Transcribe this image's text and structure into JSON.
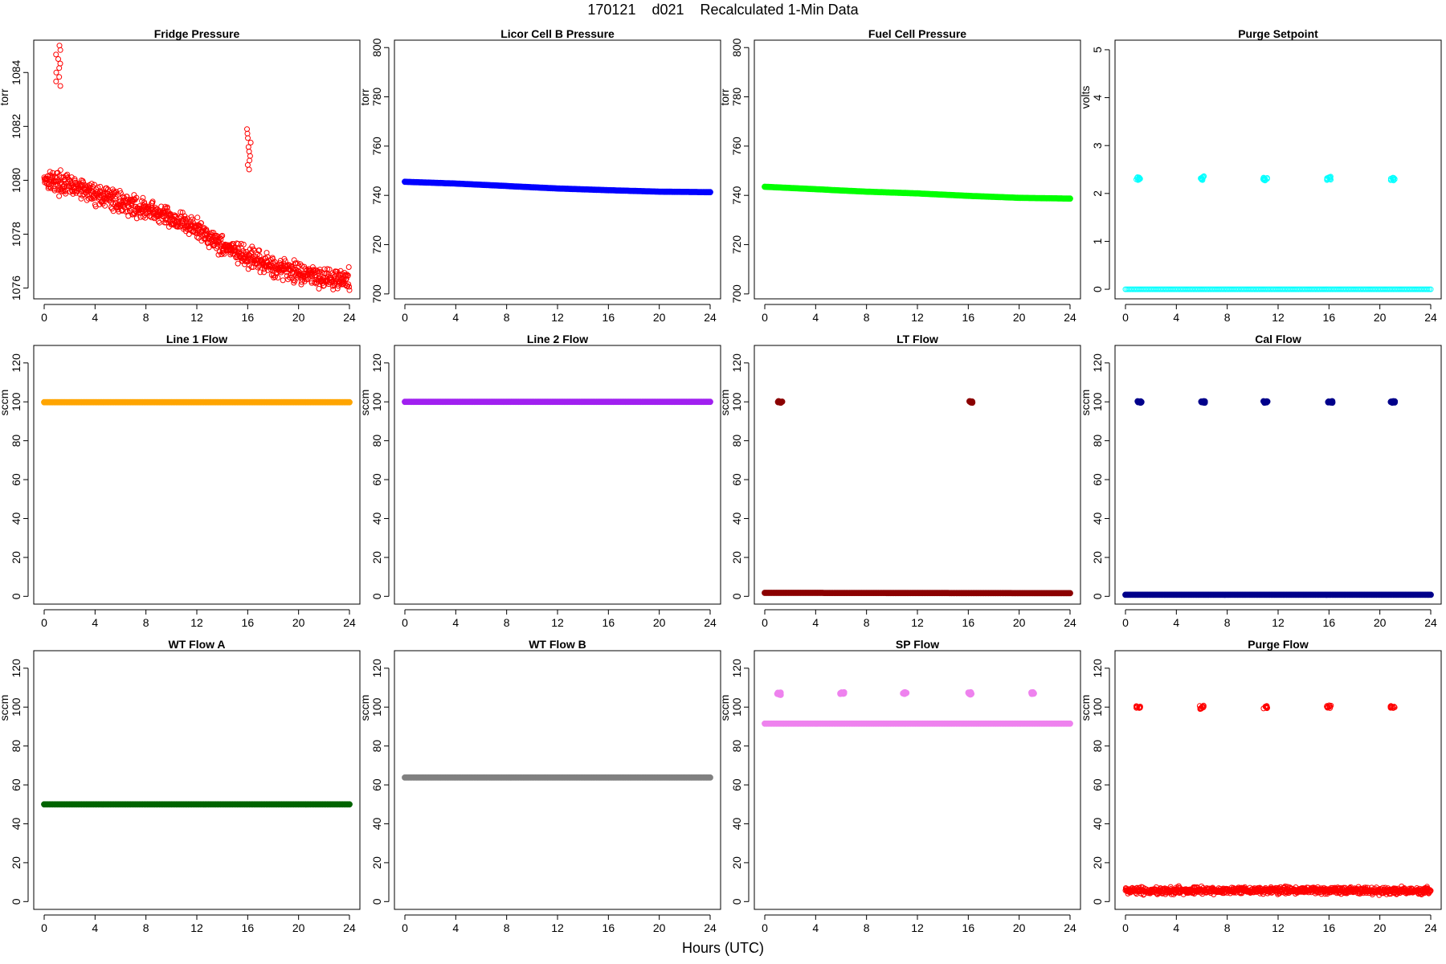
{
  "figure": {
    "title": "170121    d021    Recalculated 1-Min Data",
    "xlabel": "Hours (UTC)"
  },
  "chart_data": [
    {
      "type": "scatter",
      "title": "Fridge Pressure",
      "ylabel": "torr",
      "color": "#ff0000",
      "marker": "open",
      "xlim": [
        0,
        24
      ],
      "ylim": [
        1075.6,
        1085.2
      ],
      "xticks": [
        0,
        4,
        8,
        12,
        16,
        20,
        24
      ],
      "yticks": [
        1076,
        1078,
        1080,
        1082,
        1084
      ],
      "grid": false,
      "series": [
        {
          "kind": "noisy",
          "points": [
            [
              0,
              1080.1
            ],
            [
              2,
              1079.8
            ],
            [
              4,
              1079.5
            ],
            [
              6,
              1079.2
            ],
            [
              8,
              1078.9
            ],
            [
              10,
              1078.6
            ],
            [
              12,
              1078.2
            ],
            [
              14,
              1077.6
            ],
            [
              16,
              1077.1
            ],
            [
              18,
              1076.8
            ],
            [
              20,
              1076.6
            ],
            [
              22,
              1076.4
            ],
            [
              24,
              1076.3
            ]
          ],
          "spread": 0.35
        },
        {
          "kind": "cluster",
          "x": 1.1,
          "y_min": 1083.5,
          "y_max": 1085.0
        },
        {
          "kind": "cluster",
          "x": 16.1,
          "y_min": 1080.4,
          "y_max": 1081.9
        }
      ]
    },
    {
      "type": "scatter",
      "title": "Licor Cell B Pressure",
      "ylabel": "torr",
      "color": "#0000ff",
      "marker": "filled",
      "xlim": [
        0,
        24
      ],
      "ylim": [
        698,
        803
      ],
      "xticks": [
        0,
        4,
        8,
        12,
        16,
        20,
        24
      ],
      "yticks": [
        700,
        720,
        740,
        760,
        780,
        800
      ],
      "grid": false,
      "series": [
        {
          "kind": "line",
          "points": [
            [
              0,
              745.5
            ],
            [
              4,
              744.8
            ],
            [
              8,
              743.8
            ],
            [
              12,
              742.8
            ],
            [
              16,
              742.1
            ],
            [
              20,
              741.5
            ],
            [
              24,
              741.3
            ]
          ]
        }
      ]
    },
    {
      "type": "scatter",
      "title": "Fuel Cell Pressure",
      "ylabel": "torr",
      "color": "#00ff00",
      "marker": "filled",
      "xlim": [
        0,
        24
      ],
      "ylim": [
        698,
        803
      ],
      "xticks": [
        0,
        4,
        8,
        12,
        16,
        20,
        24
      ],
      "yticks": [
        700,
        720,
        740,
        760,
        780,
        800
      ],
      "grid": false,
      "series": [
        {
          "kind": "line",
          "points": [
            [
              0,
              743.5
            ],
            [
              4,
              742.5
            ],
            [
              8,
              741.5
            ],
            [
              12,
              740.8
            ],
            [
              16,
              739.8
            ],
            [
              20,
              739.0
            ],
            [
              24,
              738.7
            ]
          ]
        }
      ]
    },
    {
      "type": "scatter",
      "title": "Purge Setpoint",
      "ylabel": "volts",
      "color": "#00ffff",
      "marker": "open",
      "xlim": [
        0,
        24
      ],
      "ylim": [
        -0.2,
        5.2
      ],
      "xticks": [
        0,
        4,
        8,
        12,
        16,
        20,
        24
      ],
      "yticks": [
        0,
        1,
        2,
        3,
        4,
        5
      ],
      "grid": false,
      "series": [
        {
          "kind": "line",
          "points": [
            [
              0,
              0
            ],
            [
              24,
              0
            ]
          ]
        },
        {
          "kind": "cluster",
          "x": 1.0,
          "y_min": 2.28,
          "y_max": 2.34
        },
        {
          "kind": "cluster",
          "x": 6.0,
          "y_min": 2.28,
          "y_max": 2.36
        },
        {
          "kind": "cluster",
          "x": 11.0,
          "y_min": 2.27,
          "y_max": 2.33
        },
        {
          "kind": "cluster",
          "x": 16.0,
          "y_min": 2.28,
          "y_max": 2.35
        },
        {
          "kind": "cluster",
          "x": 21.0,
          "y_min": 2.27,
          "y_max": 2.33
        }
      ]
    },
    {
      "type": "scatter",
      "title": "Line 1 Flow",
      "ylabel": "sccm",
      "color": "#ffa500",
      "marker": "filled",
      "xlim": [
        0,
        24
      ],
      "ylim": [
        -4,
        129
      ],
      "xticks": [
        0,
        4,
        8,
        12,
        16,
        20,
        24
      ],
      "yticks": [
        0,
        20,
        40,
        60,
        80,
        100,
        120
      ],
      "grid": false,
      "series": [
        {
          "kind": "line",
          "points": [
            [
              0,
              99.8
            ],
            [
              24,
              99.8
            ]
          ]
        }
      ]
    },
    {
      "type": "scatter",
      "title": "Line 2 Flow",
      "ylabel": "sccm",
      "color": "#a020f0",
      "marker": "filled",
      "xlim": [
        0,
        24
      ],
      "ylim": [
        -4,
        129
      ],
      "xticks": [
        0,
        4,
        8,
        12,
        16,
        20,
        24
      ],
      "yticks": [
        0,
        20,
        40,
        60,
        80,
        100,
        120
      ],
      "grid": false,
      "series": [
        {
          "kind": "line",
          "points": [
            [
              0,
              100.0
            ],
            [
              24,
              100.0
            ]
          ]
        }
      ]
    },
    {
      "type": "scatter",
      "title": "LT Flow",
      "ylabel": "sccm",
      "color": "#8b0000",
      "marker": "filled",
      "xlim": [
        0,
        24
      ],
      "ylim": [
        -4,
        129
      ],
      "xticks": [
        0,
        4,
        8,
        12,
        16,
        20,
        24
      ],
      "yticks": [
        0,
        20,
        40,
        60,
        80,
        100,
        120
      ],
      "grid": false,
      "series": [
        {
          "kind": "line",
          "points": [
            [
              0,
              1.8
            ],
            [
              24,
              1.6
            ]
          ]
        },
        {
          "kind": "cluster",
          "x": 1.2,
          "y_min": 99.6,
          "y_max": 100.3
        },
        {
          "kind": "cluster",
          "x": 16.2,
          "y_min": 99.6,
          "y_max": 100.3
        }
      ]
    },
    {
      "type": "scatter",
      "title": "Cal Flow",
      "ylabel": "sccm",
      "color": "#00008b",
      "marker": "filled",
      "xlim": [
        0,
        24
      ],
      "ylim": [
        -4,
        129
      ],
      "xticks": [
        0,
        4,
        8,
        12,
        16,
        20,
        24
      ],
      "yticks": [
        0,
        20,
        40,
        60,
        80,
        100,
        120
      ],
      "grid": false,
      "series": [
        {
          "kind": "line",
          "points": [
            [
              0,
              0.8
            ],
            [
              24,
              0.8
            ]
          ]
        },
        {
          "kind": "cluster",
          "x": 1.1,
          "y_min": 99.6,
          "y_max": 100.3
        },
        {
          "kind": "cluster",
          "x": 6.1,
          "y_min": 99.6,
          "y_max": 100.3
        },
        {
          "kind": "cluster",
          "x": 11.0,
          "y_min": 99.6,
          "y_max": 100.3
        },
        {
          "kind": "cluster",
          "x": 16.1,
          "y_min": 99.6,
          "y_max": 100.3
        },
        {
          "kind": "cluster",
          "x": 21.0,
          "y_min": 99.6,
          "y_max": 100.3
        }
      ]
    },
    {
      "type": "scatter",
      "title": "WT Flow A",
      "ylabel": "sccm",
      "color": "#006400",
      "marker": "filled",
      "xlim": [
        0,
        24
      ],
      "ylim": [
        -4,
        129
      ],
      "xticks": [
        0,
        4,
        8,
        12,
        16,
        20,
        24
      ],
      "yticks": [
        0,
        20,
        40,
        60,
        80,
        100,
        120
      ],
      "grid": false,
      "series": [
        {
          "kind": "line",
          "points": [
            [
              0,
              50.0
            ],
            [
              24,
              50.0
            ]
          ]
        }
      ]
    },
    {
      "type": "scatter",
      "title": "WT Flow B",
      "ylabel": "sccm",
      "color": "#808080",
      "marker": "filled",
      "xlim": [
        0,
        24
      ],
      "ylim": [
        -4,
        129
      ],
      "xticks": [
        0,
        4,
        8,
        12,
        16,
        20,
        24
      ],
      "yticks": [
        0,
        20,
        40,
        60,
        80,
        100,
        120
      ],
      "grid": false,
      "series": [
        {
          "kind": "line",
          "points": [
            [
              0,
              63.8
            ],
            [
              24,
              63.8
            ]
          ]
        }
      ]
    },
    {
      "type": "scatter",
      "title": "SP Flow",
      "ylabel": "sccm",
      "color": "#ee82ee",
      "marker": "filled",
      "xlim": [
        0,
        24
      ],
      "ylim": [
        -4,
        129
      ],
      "xticks": [
        0,
        4,
        8,
        12,
        16,
        20,
        24
      ],
      "yticks": [
        0,
        20,
        40,
        60,
        80,
        100,
        120
      ],
      "grid": false,
      "series": [
        {
          "kind": "line",
          "points": [
            [
              0,
              91.5
            ],
            [
              24,
              91.5
            ]
          ]
        },
        {
          "kind": "cluster",
          "x": 1.1,
          "y_min": 106.3,
          "y_max": 107.5
        },
        {
          "kind": "cluster",
          "x": 6.1,
          "y_min": 106.8,
          "y_max": 107.6
        },
        {
          "kind": "cluster",
          "x": 11.0,
          "y_min": 106.8,
          "y_max": 107.6
        },
        {
          "kind": "cluster",
          "x": 16.1,
          "y_min": 106.5,
          "y_max": 107.6
        },
        {
          "kind": "cluster",
          "x": 21.0,
          "y_min": 106.8,
          "y_max": 107.6
        }
      ]
    },
    {
      "type": "scatter",
      "title": "Purge Flow",
      "ylabel": "sccm",
      "color": "#ff0000",
      "marker": "open",
      "xlim": [
        0,
        24
      ],
      "ylim": [
        -4,
        129
      ],
      "xticks": [
        0,
        4,
        8,
        12,
        16,
        20,
        24
      ],
      "yticks": [
        0,
        20,
        40,
        60,
        80,
        100,
        120
      ],
      "grid": false,
      "series": [
        {
          "kind": "noisy",
          "points": [
            [
              0,
              5.5
            ],
            [
              12,
              5.8
            ],
            [
              24,
              5.5
            ]
          ],
          "spread": 1.6
        },
        {
          "kind": "cluster",
          "x": 1.0,
          "y_min": 99.5,
          "y_max": 100.5
        },
        {
          "kind": "cluster",
          "x": 6.0,
          "y_min": 99.0,
          "y_max": 100.8
        },
        {
          "kind": "cluster",
          "x": 11.0,
          "y_min": 99.3,
          "y_max": 100.6
        },
        {
          "kind": "cluster",
          "x": 16.0,
          "y_min": 99.5,
          "y_max": 100.9
        },
        {
          "kind": "cluster",
          "x": 21.0,
          "y_min": 99.5,
          "y_max": 100.6
        }
      ]
    }
  ]
}
